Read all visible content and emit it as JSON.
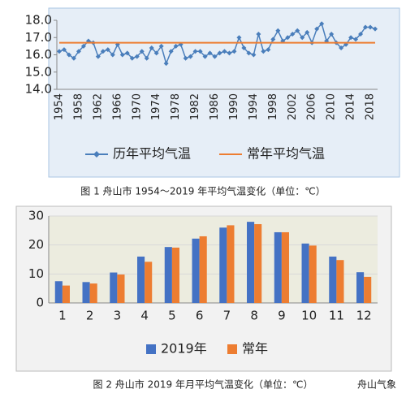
{
  "chart_data": [
    {
      "type": "line",
      "caption": "图 1  舟山市 1954～2019 年平均气温变化（单位：℃）",
      "categories": [
        "1954",
        null,
        null,
        null,
        "1958",
        null,
        null,
        null,
        "1962",
        null,
        null,
        null,
        "1966",
        null,
        null,
        null,
        "1970",
        null,
        null,
        null,
        "1974",
        null,
        null,
        null,
        "1978",
        null,
        null,
        null,
        "1982",
        null,
        null,
        null,
        "1986",
        null,
        null,
        null,
        "1990",
        null,
        null,
        null,
        "1994",
        null,
        null,
        null,
        "1998",
        null,
        null,
        null,
        "2002",
        null,
        null,
        null,
        "2006",
        null,
        null,
        null,
        "2010",
        null,
        null,
        null,
        "2014",
        null,
        null,
        null,
        "2018",
        null
      ],
      "series": [
        {
          "name": "历年平均气温",
          "color": "#4a7ebb",
          "values": [
            16.2,
            16.3,
            16.0,
            15.8,
            16.2,
            16.5,
            16.8,
            16.7,
            15.9,
            16.2,
            16.3,
            16.0,
            16.6,
            16.0,
            16.1,
            15.8,
            15.9,
            16.2,
            15.8,
            16.4,
            16.1,
            16.5,
            15.5,
            16.2,
            16.5,
            16.6,
            15.8,
            15.9,
            16.2,
            16.2,
            15.9,
            16.1,
            15.9,
            16.1,
            16.2,
            16.1,
            16.2,
            17.0,
            16.4,
            16.1,
            16.0,
            17.2,
            16.2,
            16.3,
            16.9,
            17.4,
            16.8,
            17.0,
            17.2,
            17.4,
            17.0,
            17.3,
            16.7,
            17.5,
            17.8,
            16.8,
            17.2,
            16.7,
            16.4,
            16.6,
            17.0,
            16.9,
            17.2,
            17.6,
            17.6,
            17.5
          ]
        },
        {
          "name": "常年平均气温",
          "color": "#ed7d31",
          "values": [
            16.7,
            16.7,
            16.7,
            16.7,
            16.7,
            16.7,
            16.7,
            16.7,
            16.7,
            16.7,
            16.7,
            16.7,
            16.7,
            16.7,
            16.7,
            16.7,
            16.7,
            16.7,
            16.7,
            16.7,
            16.7,
            16.7,
            16.7,
            16.7,
            16.7,
            16.7,
            16.7,
            16.7,
            16.7,
            16.7,
            16.7,
            16.7,
            16.7,
            16.7,
            16.7,
            16.7,
            16.7,
            16.7,
            16.7,
            16.7,
            16.7,
            16.7,
            16.7,
            16.7,
            16.7,
            16.7,
            16.7,
            16.7,
            16.7,
            16.7,
            16.7,
            16.7,
            16.7,
            16.7,
            16.7,
            16.7,
            16.7,
            16.7,
            16.7,
            16.7,
            16.7,
            16.7,
            16.7,
            16.7,
            16.7,
            16.7
          ]
        }
      ],
      "ylim": [
        14,
        18
      ],
      "yticks": [
        {
          "value": 14,
          "label": "14.0"
        },
        {
          "value": 15,
          "label": "15.0"
        },
        {
          "value": 16,
          "label": "16.0"
        },
        {
          "value": 17,
          "label": "17.0"
        },
        {
          "value": 18,
          "label": "18.0"
        }
      ],
      "grid": false
    },
    {
      "type": "bar",
      "caption": "图 2  舟山市 2019 年月平均气温变化（单位：℃）",
      "categories": [
        "1",
        "2",
        "3",
        "4",
        "5",
        "6",
        "7",
        "8",
        "9",
        "10",
        "11",
        "12"
      ],
      "series": [
        {
          "name": "2019年",
          "color": "#4472c4",
          "values": [
            7.5,
            7.2,
            10.5,
            16.0,
            19.3,
            22.2,
            26.0,
            28.0,
            24.4,
            20.5,
            16.0,
            10.6
          ]
        },
        {
          "name": "常年",
          "color": "#ed7d31",
          "values": [
            6.0,
            6.7,
            9.8,
            14.2,
            19.1,
            23.0,
            26.8,
            27.2,
            24.4,
            19.8,
            14.8,
            9.0
          ]
        }
      ],
      "ylim": [
        0,
        30
      ],
      "yticks": [
        0,
        10,
        20,
        30
      ],
      "grid": true
    }
  ],
  "watermark": "舟山气象"
}
